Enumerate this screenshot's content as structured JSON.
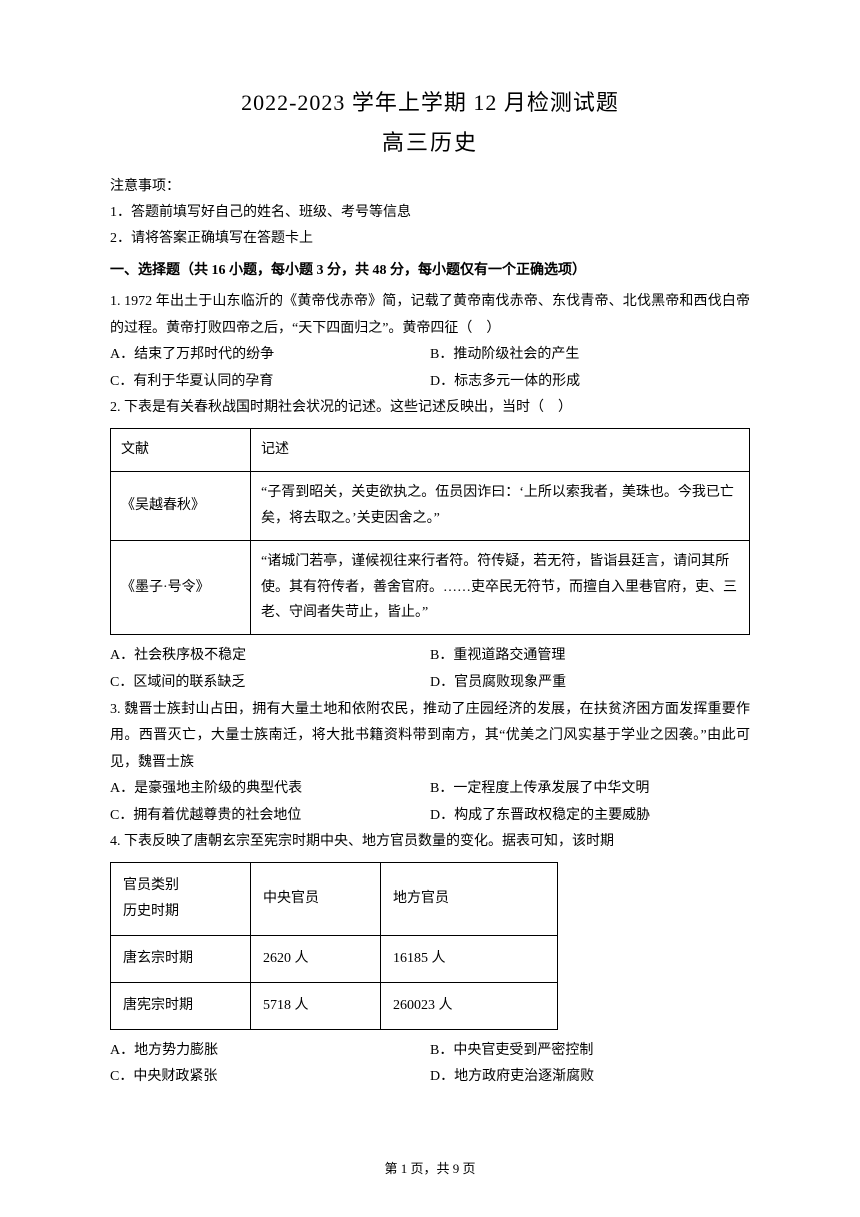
{
  "title": "2022-2023 学年上学期 12 月检测试题",
  "subtitle": "高三历史",
  "notices": {
    "header": "注意事项：",
    "items": [
      "1．答题前填写好自己的姓名、班级、考号等信息",
      "2．请将答案正确填写在答题卡上"
    ]
  },
  "section_header": "一、选择题（共 16 小题，每小题 3 分，共 48 分，每小题仅有一个正确选项）",
  "questions": {
    "q1": {
      "text": "1. 1972 年出土于山东临沂的《黄帝伐赤帝》简，记载了黄帝南伐赤帝、东伐青帝、北伐黑帝和西伐白帝的过程。黄帝打败四帝之后，“天下四面归之”。黄帝四征（　）",
      "options": {
        "a": "A．结束了万邦时代的纷争",
        "b": "B．推动阶级社会的产生",
        "c": "C．有利于华夏认同的孕育",
        "d": "D．标志多元一体的形成"
      }
    },
    "q2": {
      "text": "2. 下表是有关春秋战国时期社会状况的记述。这些记述反映出，当时（　）",
      "table": {
        "headers": {
          "c1": "文献",
          "c2": "记述"
        },
        "rows": [
          {
            "c1": "《吴越春秋》",
            "c2": "“子胥到昭关，关吏欲执之。伍员因诈曰：‘上所以索我者，美珠也。今我已亡矣，将去取之。’关吏因舍之。”"
          },
          {
            "c1": "《墨子·号令》",
            "c2": "“诸城门若亭，谨候视往来行者符。符传疑，若无符，皆诣县廷言，请问其所使。其有符传者，善舍官府。……吏卒民无符节，而擅自入里巷官府，吏、三老、守闾者失苛止，皆止。”"
          }
        ]
      },
      "options": {
        "a": "A．社会秩序极不稳定",
        "b": "B．重视道路交通管理",
        "c": "C．区域间的联系缺乏",
        "d": "D．官员腐败现象严重"
      }
    },
    "q3": {
      "text": "3. 魏晋士族封山占田，拥有大量土地和依附农民，推动了庄园经济的发展，在扶贫济困方面发挥重要作用。西晋灭亡，大量士族南迁，将大批书籍资料带到南方，其“优美之门风实基于学业之因袭。”由此可见，魏晋士族",
      "options": {
        "a": "A．是豪强地主阶级的典型代表",
        "b": "B．一定程度上传承发展了中华文明",
        "c": "C．拥有着优越尊贵的社会地位",
        "d": "D．构成了东晋政权稳定的主要威胁"
      }
    },
    "q4": {
      "text": "4. 下表反映了唐朝玄宗至宪宗时期中央、地方官员数量的变化。据表可知，该时期",
      "table": {
        "header": {
          "c1_l1": "官员类别",
          "c1_l2": "历史时期",
          "c2": "中央官员",
          "c3": "地方官员"
        },
        "rows": [
          {
            "c1": "唐玄宗时期",
            "c2": "2620 人",
            "c3": "16185 人"
          },
          {
            "c1": "唐宪宗时期",
            "c2": "5718 人",
            "c3": "260023 人"
          }
        ]
      },
      "options": {
        "a": "A．地方势力膨胀",
        "b": "B．中央官吏受到严密控制",
        "c": "C．中央财政紧张",
        "d": "D．地方政府吏治逐渐腐败"
      }
    }
  },
  "footer": "第 1 页，共 9 页"
}
